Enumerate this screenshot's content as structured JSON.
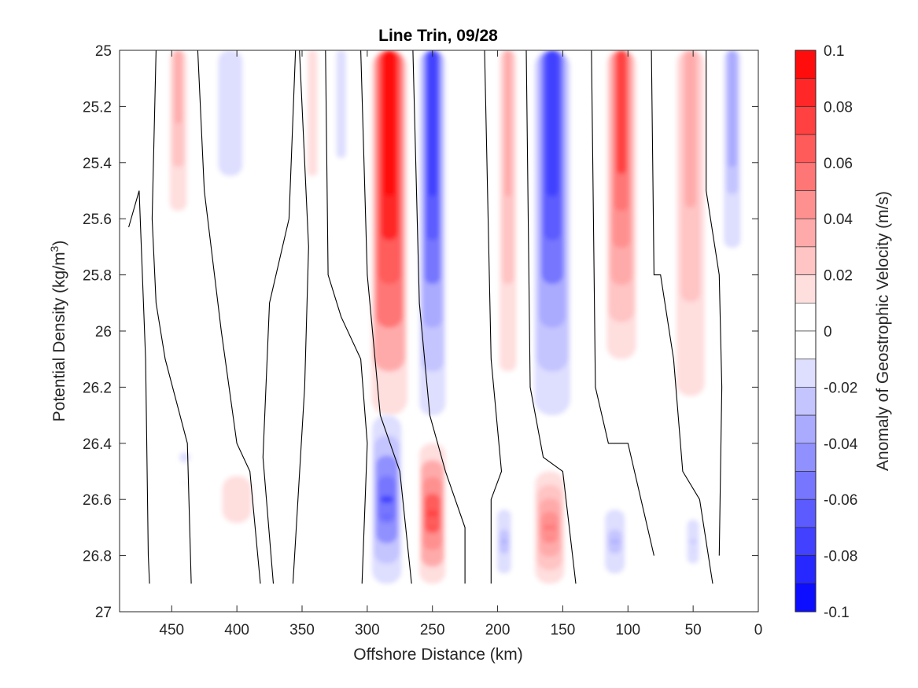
{
  "chart_data": {
    "type": "heatmap",
    "title": "Line Trin, 09/28",
    "xlabel": "Offshore Distance (km)",
    "ylabel": "Potential Density (kg/m",
    "ylabel_superscript": "3",
    "ylabel_suffix": ")",
    "xlim": [
      490,
      0
    ],
    "x_reversed": true,
    "ylim": [
      25,
      27
    ],
    "y_reversed": true,
    "xticks": [
      450,
      400,
      350,
      300,
      250,
      200,
      150,
      100,
      50,
      0
    ],
    "xtick_labels": [
      "450",
      "400",
      "350",
      "300",
      "250",
      "200",
      "150",
      "100",
      "50",
      "0"
    ],
    "yticks": [
      25,
      25.2,
      25.4,
      25.6,
      25.8,
      26,
      26.2,
      26.4,
      26.6,
      26.8,
      27
    ],
    "ytick_labels": [
      "25",
      "25.2",
      "25.4",
      "25.6",
      "25.8",
      "26",
      "26.2",
      "26.4",
      "26.6",
      "26.8",
      "27"
    ],
    "colorbar": {
      "label": "Anomaly of Geostrophic Velocity (m/s)",
      "range": [
        -0.1,
        0.1
      ],
      "ticks": [
        0.1,
        0.08,
        0.06,
        0.04,
        0.02,
        0,
        -0.02,
        -0.04,
        -0.06,
        -0.08,
        -0.1
      ],
      "tick_labels": [
        "0.1",
        "0.08",
        "0.06",
        "0.04",
        "0.02",
        "0",
        "-0.02",
        "-0.04",
        "-0.06",
        "-0.08",
        "-0.1"
      ],
      "levels": 20,
      "neutral_band": [
        -0.01,
        0.01
      ],
      "positive_color": "#ff0000",
      "negative_color": "#0000ff"
    },
    "data_extent": {
      "x": [
        470,
        10
      ],
      "y": [
        25,
        26.9
      ]
    },
    "zero_contour": "black",
    "features": [
      {
        "kind": "cell",
        "x": 445,
        "y": [
          25,
          25.65
        ],
        "value": 0.03,
        "width_km": 12
      },
      {
        "kind": "cell",
        "x": 405,
        "y": [
          25,
          25.7
        ],
        "value": -0.02,
        "width_km": 25
      },
      {
        "kind": "cell",
        "x": 342,
        "y": [
          25,
          25.7
        ],
        "value": 0.015,
        "width_km": 10
      },
      {
        "kind": "cell",
        "x": 320,
        "y": [
          25,
          25.6
        ],
        "value": -0.02,
        "width_km": 10
      },
      {
        "kind": "cell",
        "x": 283,
        "y": [
          25,
          26.3
        ],
        "value": 0.1,
        "width_km": 22
      },
      {
        "kind": "cell",
        "x": 250,
        "y": [
          25,
          26.3
        ],
        "value": -0.08,
        "width_km": 16
      },
      {
        "kind": "cell",
        "x": 192,
        "y": [
          25,
          26.3
        ],
        "value": 0.03,
        "width_km": 12
      },
      {
        "kind": "cell",
        "x": 158,
        "y": [
          25,
          26.3
        ],
        "value": -0.08,
        "width_km": 22
      },
      {
        "kind": "cell",
        "x": 105,
        "y": [
          25,
          26.1
        ],
        "value": 0.07,
        "width_km": 18
      },
      {
        "kind": "cell",
        "x": 52,
        "y": [
          25,
          26.4
        ],
        "value": 0.03,
        "width_km": 20
      },
      {
        "kind": "cell",
        "x": 20,
        "y": [
          25,
          25.8
        ],
        "value": -0.04,
        "width_km": 12
      },
      {
        "kind": "cell",
        "x": 440,
        "y": [
          26,
          26.9
        ],
        "value": -0.015,
        "width_km": 14
      },
      {
        "kind": "cell",
        "x": 400,
        "y": [
          26.3,
          26.9
        ],
        "value": 0.015,
        "width_km": 30
      },
      {
        "kind": "cell",
        "x": 285,
        "y": [
          26.3,
          26.9
        ],
        "value": -0.09,
        "width_km": 18
      },
      {
        "kind": "cell",
        "x": 250,
        "y": [
          26.4,
          26.9
        ],
        "value": 0.09,
        "width_km": 16
      },
      {
        "kind": "cell",
        "x": 195,
        "y": [
          26.6,
          26.9
        ],
        "value": -0.04,
        "width_km": 10
      },
      {
        "kind": "cell",
        "x": 160,
        "y": [
          26.5,
          26.9
        ],
        "value": 0.06,
        "width_km": 18
      },
      {
        "kind": "cell",
        "x": 110,
        "y": [
          26.6,
          26.9
        ],
        "value": -0.04,
        "width_km": 14
      },
      {
        "kind": "cell",
        "x": 50,
        "y": [
          26.6,
          26.9
        ],
        "value": -0.03,
        "width_km": 10
      }
    ]
  }
}
